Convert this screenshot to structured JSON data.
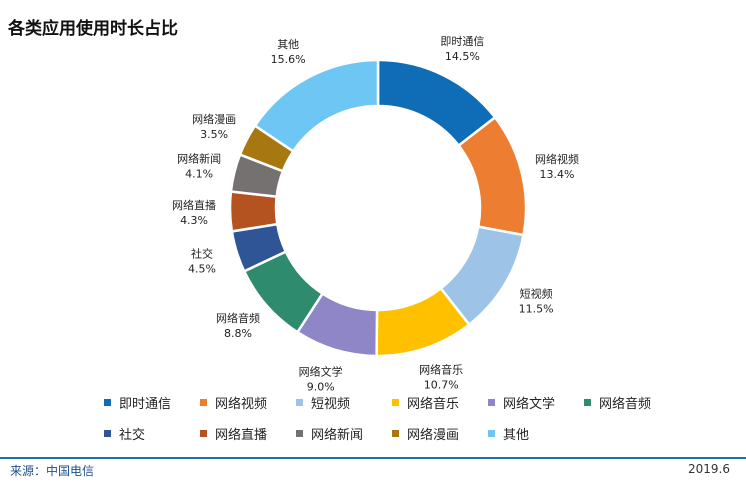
{
  "title": "各类应用使用时长占比",
  "source": "来源：中国电信",
  "date": "2019.6",
  "chart_data": {
    "type": "pie",
    "donut": true,
    "title": "各类应用使用时长占比",
    "legend_position": "bottom",
    "slices": [
      {
        "name": "即时通信",
        "value": 14.5,
        "label": "14.5%",
        "color": "#0e6db6"
      },
      {
        "name": "网络视频",
        "value": 13.4,
        "label": "13.4%",
        "color": "#ed7d31"
      },
      {
        "name": "短视频",
        "value": 11.5,
        "label": "11.5%",
        "color": "#9dc3e6"
      },
      {
        "name": "网络音乐",
        "value": 10.7,
        "label": "10.7%",
        "color": "#ffc000"
      },
      {
        "name": "网络文学",
        "value": 9.0,
        "label": "9.0%",
        "color": "#8e86c7"
      },
      {
        "name": "网络音频",
        "value": 8.8,
        "label": "8.8%",
        "color": "#2e8b6e"
      },
      {
        "name": "社交",
        "value": 4.5,
        "label": "4.5%",
        "color": "#2f5597"
      },
      {
        "name": "网络直播",
        "value": 4.3,
        "label": "4.3%",
        "color": "#b4531f"
      },
      {
        "name": "网络新闻",
        "value": 4.1,
        "label": "4.1%",
        "color": "#767171"
      },
      {
        "name": "网络漫画",
        "value": 3.5,
        "label": "3.5%",
        "color": "#a6780f"
      },
      {
        "name": "其他",
        "value": 15.6,
        "label": "15.6%",
        "color": "#6ec6f5"
      }
    ]
  }
}
